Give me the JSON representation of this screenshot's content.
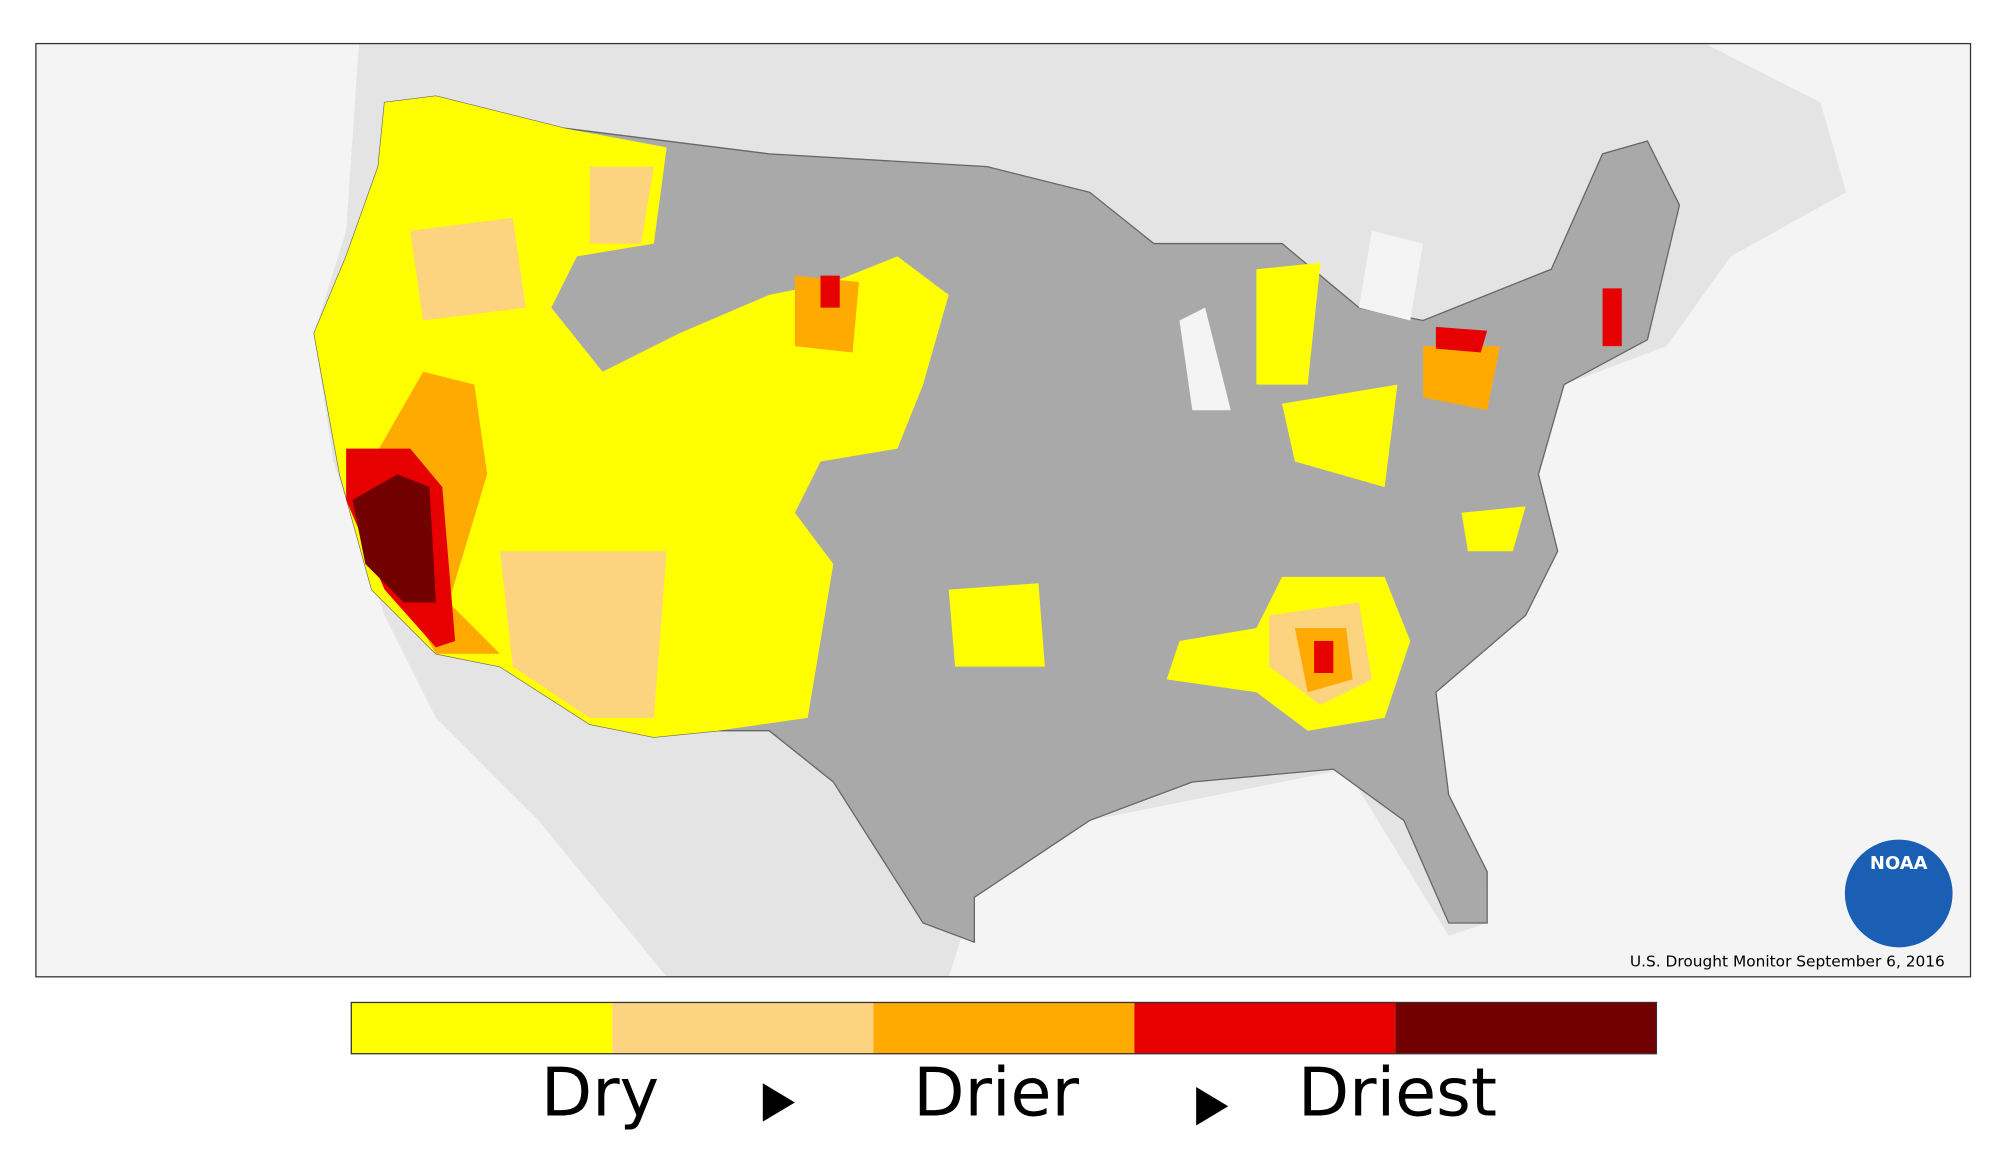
{
  "map": {
    "credit": "U.S. Drought Monitor September 6, 2016",
    "logo": "NOAA"
  },
  "legend": {
    "colors": [
      "#ffff00",
      "#fcd37f",
      "#ffaa00",
      "#e60000",
      "#730000"
    ],
    "labels": [
      "Dry",
      "Drier",
      "Driest"
    ]
  }
}
